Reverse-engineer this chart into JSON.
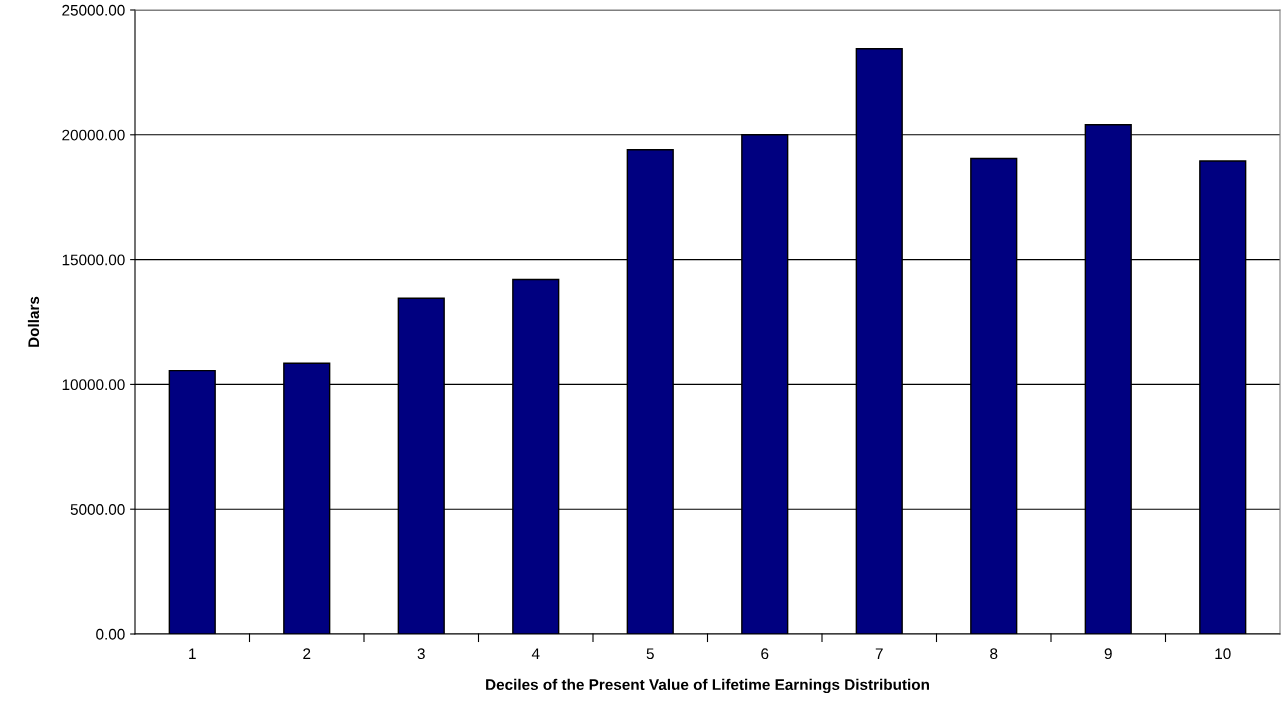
{
  "chart_data": {
    "type": "bar",
    "xlabel": "Deciles of the Present Value of Lifetime Earnings Distribution",
    "ylabel": "Dollars",
    "categories": [
      "1",
      "2",
      "3",
      "4",
      "5",
      "6",
      "7",
      "8",
      "9",
      "10"
    ],
    "values": [
      10550,
      10850,
      13450,
      14200,
      19400,
      20000,
      23450,
      19050,
      20400,
      18950
    ],
    "color": "#000080",
    "ylim": [
      0,
      25000
    ],
    "yticks": [
      {
        "value": 0,
        "label": "0.00"
      },
      {
        "value": 5000,
        "label": "5000.00"
      },
      {
        "value": 10000,
        "label": "10000.00"
      },
      {
        "value": 15000,
        "label": "15000.00"
      },
      {
        "value": 20000,
        "label": "20000.00"
      },
      {
        "value": 25000,
        "label": "25000.00"
      }
    ],
    "grid": "y",
    "legend": false
  }
}
